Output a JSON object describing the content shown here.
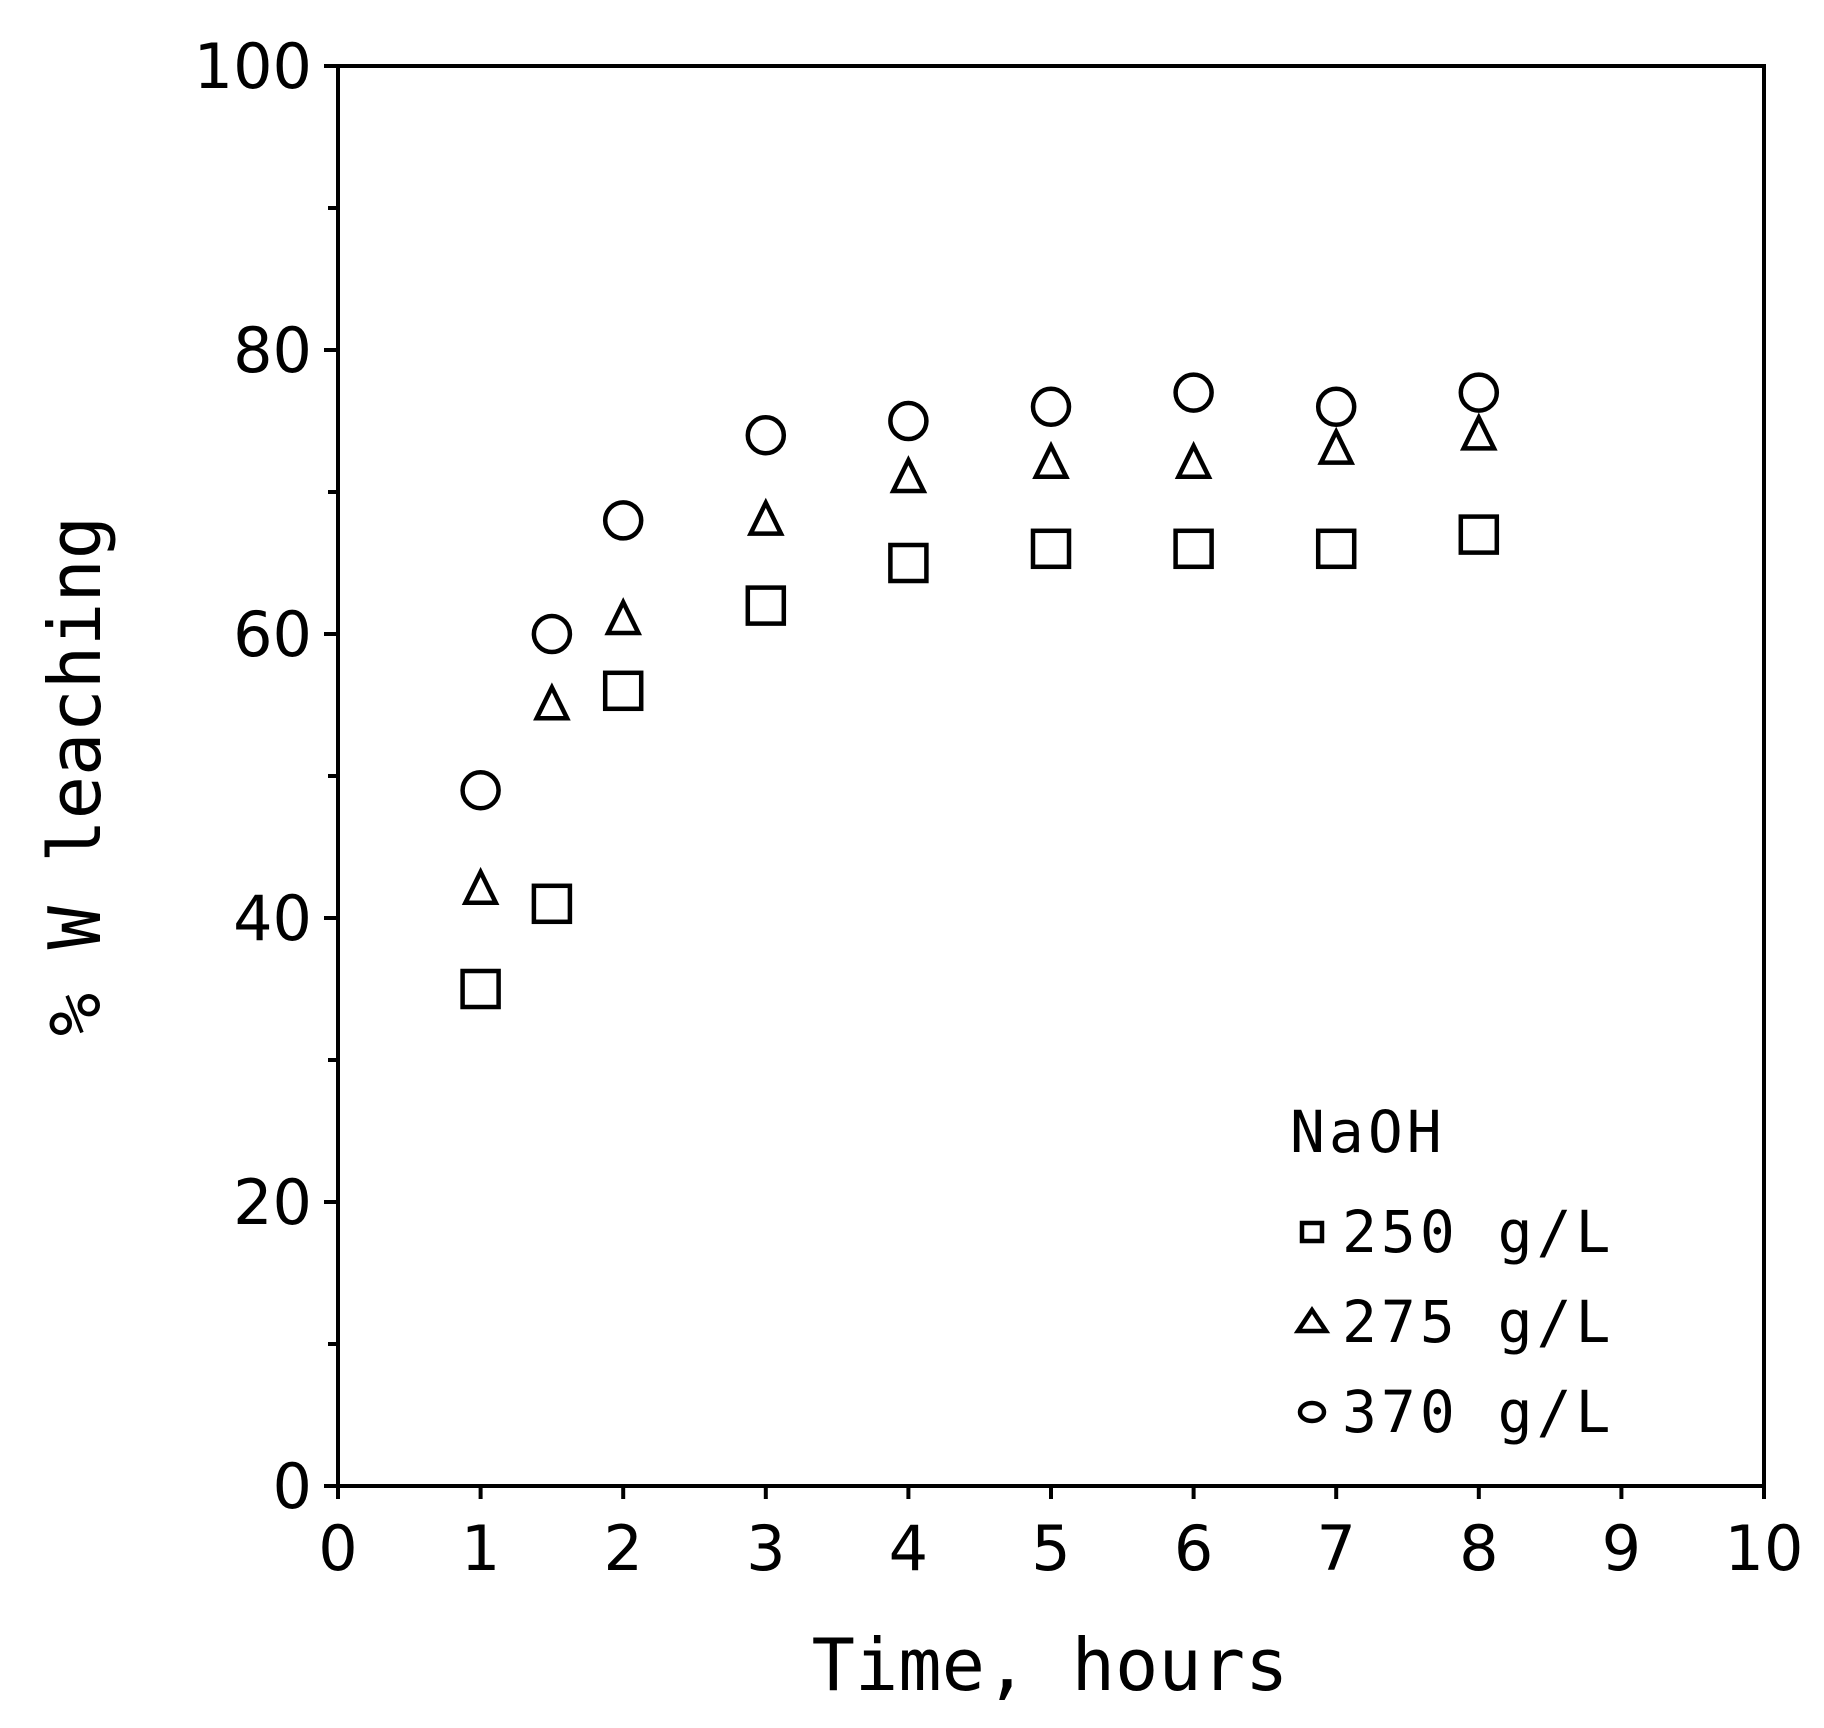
{
  "chart_data": {
    "type": "scatter",
    "title": "",
    "xlabel": "Time, hours",
    "ylabel": "% W leaching",
    "xlim": [
      0,
      10
    ],
    "ylim": [
      0,
      100
    ],
    "x_ticks": [
      "0",
      "1",
      "2",
      "3",
      "4",
      "5",
      "6",
      "7",
      "8",
      "9",
      "10"
    ],
    "y_ticks": [
      "0",
      "20",
      "40",
      "60",
      "80",
      "100"
    ],
    "grid": false,
    "legend_title": "NaOH",
    "legend_position": "bottom-right",
    "series": [
      {
        "name": "250 g/L",
        "marker": "square",
        "x": [
          1,
          1.5,
          2,
          3,
          4,
          5,
          6,
          7,
          8
        ],
        "y": [
          35,
          41,
          56,
          62,
          65,
          66,
          66,
          66,
          67
        ]
      },
      {
        "name": "275 g/L",
        "marker": "triangle",
        "x": [
          1,
          1.5,
          2,
          3,
          4,
          5,
          6,
          7,
          8
        ],
        "y": [
          42,
          55,
          61,
          68,
          71,
          72,
          72,
          73,
          74
        ]
      },
      {
        "name": "370 g/L",
        "marker": "circle",
        "x": [
          1,
          1.5,
          2,
          3,
          4,
          5,
          6,
          7,
          8
        ],
        "y": [
          49,
          60,
          68,
          74,
          75,
          76,
          77,
          76,
          77
        ]
      }
    ]
  }
}
